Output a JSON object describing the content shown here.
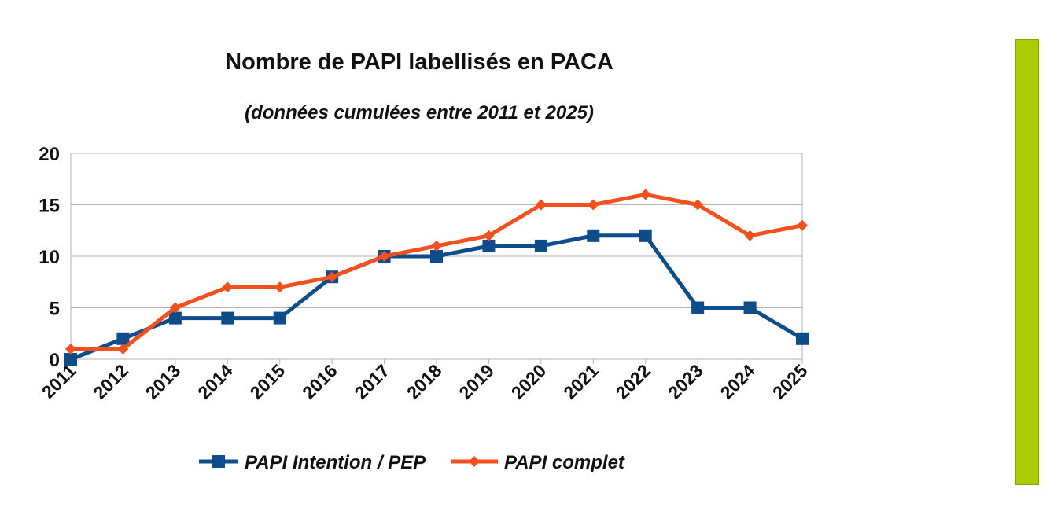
{
  "chart_data": {
    "type": "line",
    "title": "Nombre de PAPI labellisés en PACA",
    "subtitle": "(données cumulées entre 2011 et 2025)",
    "categories": [
      "2011",
      "2012",
      "2013",
      "2014",
      "2015",
      "2016",
      "2017",
      "2018",
      "2019",
      "2020",
      "2021",
      "2022",
      "2023",
      "2024",
      "2025"
    ],
    "series": [
      {
        "name": "PAPI Intention / PEP",
        "color": "#0f4c8a",
        "marker": "square",
        "values": [
          0,
          2,
          4,
          4,
          4,
          8,
          10,
          10,
          11,
          11,
          12,
          12,
          5,
          5,
          2
        ]
      },
      {
        "name": "PAPI complet",
        "color": "#f2501e",
        "marker": "diamond",
        "values": [
          1,
          1,
          5,
          7,
          7,
          8,
          10,
          11,
          12,
          15,
          15,
          16,
          15,
          12,
          13
        ]
      }
    ],
    "ylim": [
      0,
      20
    ],
    "yticks": [
      0,
      5,
      10,
      15,
      20
    ],
    "xlabel": "",
    "ylabel": "",
    "grid": true,
    "legend": "bottom"
  },
  "side_bar_color": "#aacc00"
}
